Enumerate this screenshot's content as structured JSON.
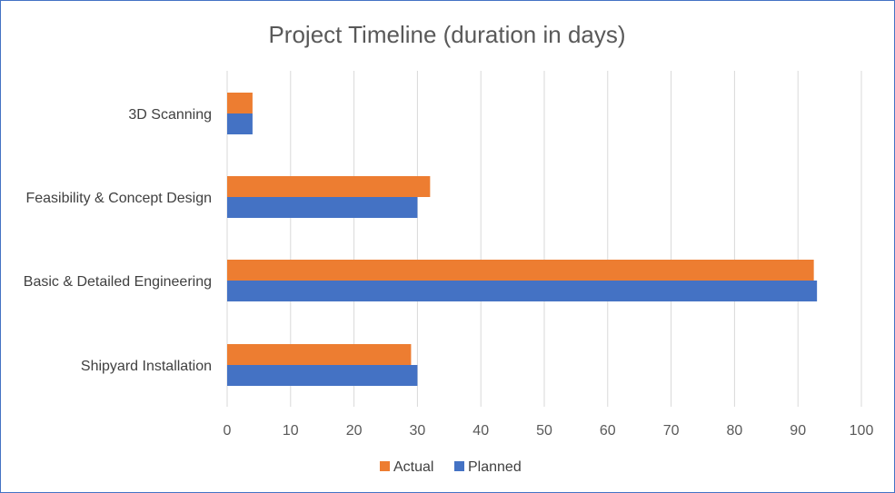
{
  "chart_data": {
    "type": "bar",
    "orientation": "horizontal",
    "title": "Project Timeline (duration in days)",
    "categories": [
      "3D Scanning",
      "Feasibility & Concept Design",
      "Basic & Detailed Engineering",
      "Shipyard Installation"
    ],
    "series": [
      {
        "name": "Actual",
        "color": "#ed7d31",
        "values": [
          4,
          32,
          92.5,
          29
        ]
      },
      {
        "name": "Planned",
        "color": "#4472c4",
        "values": [
          4,
          30,
          93,
          30
        ]
      }
    ],
    "xlim": [
      0,
      100
    ],
    "xticks": [
      "0",
      "10",
      "20",
      "30",
      "40",
      "50",
      "60",
      "70",
      "80",
      "90",
      "100"
    ],
    "grid": true,
    "legend_position": "bottom"
  }
}
